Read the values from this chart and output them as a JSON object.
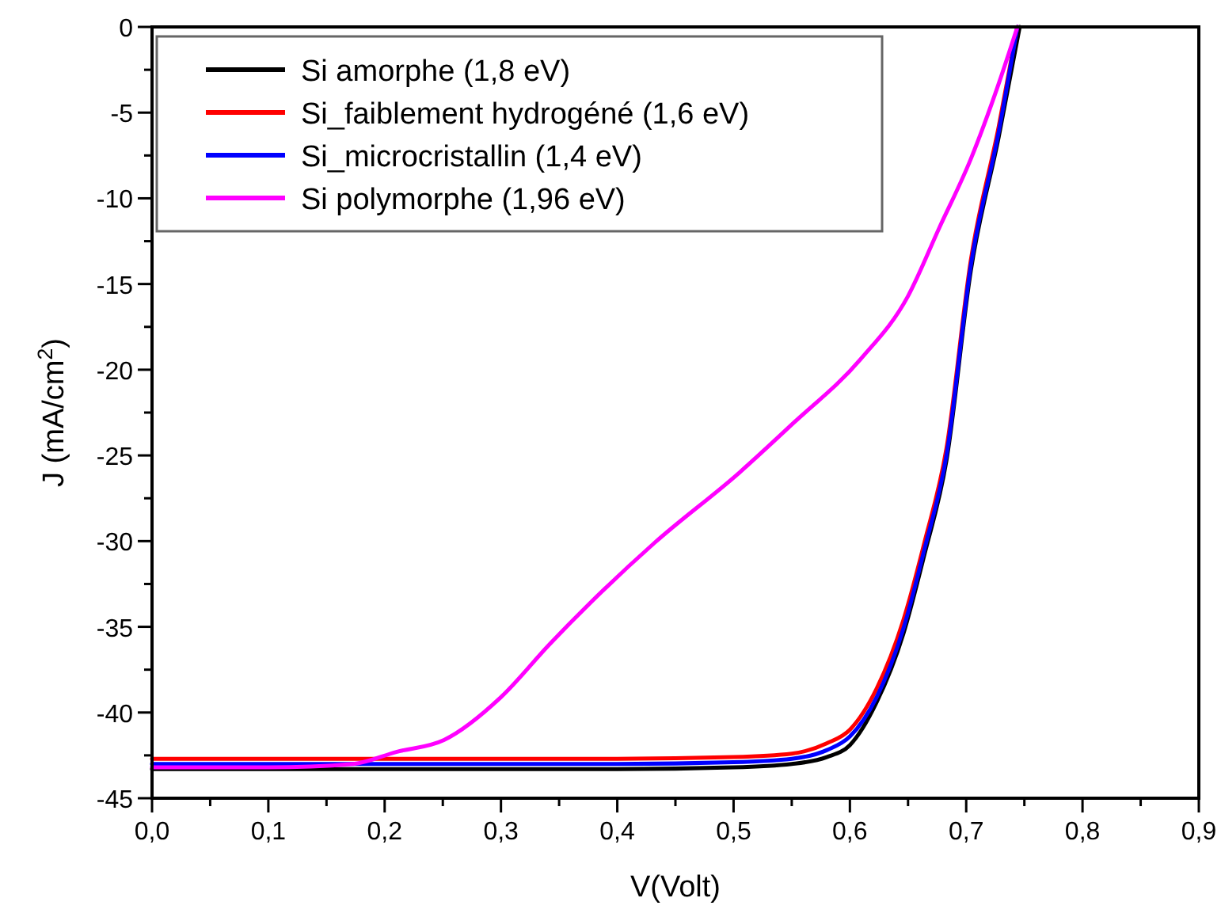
{
  "chart_data": {
    "type": "line",
    "xlabel": "V(Volt)",
    "ylabel": "J (mA/cm$^{2}$)",
    "xlim": [
      0,
      0.9
    ],
    "ylim": [
      -45,
      0
    ],
    "xticks": [
      {
        "value": 0,
        "label": "0,0"
      },
      {
        "value": 0.05,
        "label": null
      },
      {
        "value": 0.1,
        "label": "0,1"
      },
      {
        "value": 0.15,
        "label": null
      },
      {
        "value": 0.2,
        "label": "0,2"
      },
      {
        "value": 0.25,
        "label": null
      },
      {
        "value": 0.3,
        "label": "0,3"
      },
      {
        "value": 0.35,
        "label": null
      },
      {
        "value": 0.4,
        "label": "0,4"
      },
      {
        "value": 0.45,
        "label": null
      },
      {
        "value": 0.5,
        "label": "0,5"
      },
      {
        "value": 0.55,
        "label": null
      },
      {
        "value": 0.6,
        "label": "0,6"
      },
      {
        "value": 0.65,
        "label": null
      },
      {
        "value": 0.7,
        "label": "0,7"
      },
      {
        "value": 0.75,
        "label": null
      },
      {
        "value": 0.8,
        "label": "0,8"
      },
      {
        "value": 0.85,
        "label": null
      },
      {
        "value": 0.9,
        "label": "0,9"
      }
    ],
    "yticks": [
      -45,
      {
        "value": -42.5,
        "label": null
      },
      -40,
      {
        "value": -37.5,
        "label": null
      },
      -35,
      {
        "value": -32.5,
        "label": null
      },
      -30,
      {
        "value": -27.5,
        "label": null
      },
      -25,
      {
        "value": -22.5,
        "label": null
      },
      -20,
      {
        "value": -17.5,
        "label": null
      },
      -15,
      {
        "value": -12.5,
        "label": null
      },
      -10,
      {
        "value": -7.5,
        "label": null
      },
      -5,
      {
        "value": -2.5,
        "label": null
      },
      0
    ],
    "grid": false,
    "legend": "top left",
    "marker": "none",
    "line_style": "solid",
    "series": [
      {
        "name": "Si amorphe (1,8 eV)",
        "color": "#000000",
        "x": [
          0,
          0.1,
          0.2,
          0.3,
          0.4,
          0.5,
          0.55,
          0.58,
          0.6,
          0.623,
          0.646,
          0.664,
          0.683,
          0.704,
          0.728,
          0.746
        ],
        "values": [
          -43.3,
          -43.3,
          -43.3,
          -43.3,
          -43.3,
          -43.2,
          -43,
          -42.6,
          -41.9,
          -39.4,
          -35.4,
          -30.8,
          -25.3,
          -14.2,
          -6.4,
          0
        ]
      },
      {
        "name": "Si_faiblement hydrogéné (1,6 eV)",
        "color": "#ff0000",
        "x": [
          0,
          0.1,
          0.2,
          0.3,
          0.4,
          0.5,
          0.55,
          0.58,
          0.6,
          0.623,
          0.646,
          0.664,
          0.683,
          0.704,
          0.728,
          0.744
        ],
        "values": [
          -42.7,
          -42.7,
          -42.7,
          -42.7,
          -42.7,
          -42.6,
          -42.4,
          -41.8,
          -41,
          -38.6,
          -34.6,
          -30.1,
          -24.6,
          -13.6,
          -5.8,
          0
        ]
      },
      {
        "name": "Si_microcristallin (1,4 eV)",
        "color": "#0000ff",
        "x": [
          0,
          0.1,
          0.2,
          0.3,
          0.4,
          0.5,
          0.55,
          0.58,
          0.6,
          0.623,
          0.646,
          0.664,
          0.683,
          0.704,
          0.728,
          0.744
        ],
        "values": [
          -43,
          -43,
          -43,
          -43,
          -43,
          -42.9,
          -42.7,
          -42.2,
          -41.4,
          -39.1,
          -35.1,
          -30.5,
          -25,
          -13.9,
          -6.1,
          0
        ]
      },
      {
        "name": "Si polymorphe (1,96 eV)",
        "color": "#ff00ff",
        "x": [
          0,
          0.1,
          0.173,
          0.21,
          0.251,
          0.3,
          0.342,
          0.432,
          0.505,
          0.55,
          0.609,
          0.65,
          0.677,
          0.704,
          0.728,
          0.744
        ],
        "values": [
          -43.2,
          -43.2,
          -43,
          -42.3,
          -41.6,
          -39.1,
          -36,
          -30.1,
          -26,
          -23.2,
          -19.4,
          -15.7,
          -11.7,
          -7.7,
          -3.3,
          0
        ]
      }
    ]
  }
}
